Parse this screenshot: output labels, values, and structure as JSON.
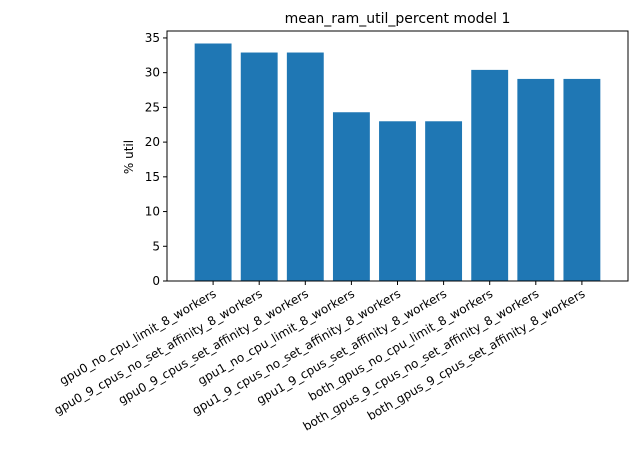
{
  "chart_data": {
    "type": "bar",
    "title": "mean_ram_util_percent model 1",
    "xlabel": "",
    "ylabel": "% util",
    "ylim": [
      0,
      36
    ],
    "yticks": [
      0,
      5,
      10,
      15,
      20,
      25,
      30,
      35
    ],
    "bar_color": "#1f77b4",
    "categories": [
      "gpu0_no_cpu_limit_8_workers",
      "gpu0_9_cpus_no_set_affinity_8_workers",
      "gpu0_9_cpus_set_affinity_8_workers",
      "gpu1_no_cpu_limit_8_workers",
      "gpu1_9_cpus_no_set_affinity_8_workers",
      "gpu1_9_cpus_set_affinity_8_workers",
      "both_gpus_no_cpu_limit_8_workers",
      "both_gpus_9_cpus_no_set_affinity_8_workers",
      "both_gpus_9_cpus_set_affinity_8_workers"
    ],
    "values": [
      34.2,
      32.9,
      32.9,
      24.3,
      23.0,
      23.0,
      30.4,
      29.1,
      29.1
    ]
  }
}
